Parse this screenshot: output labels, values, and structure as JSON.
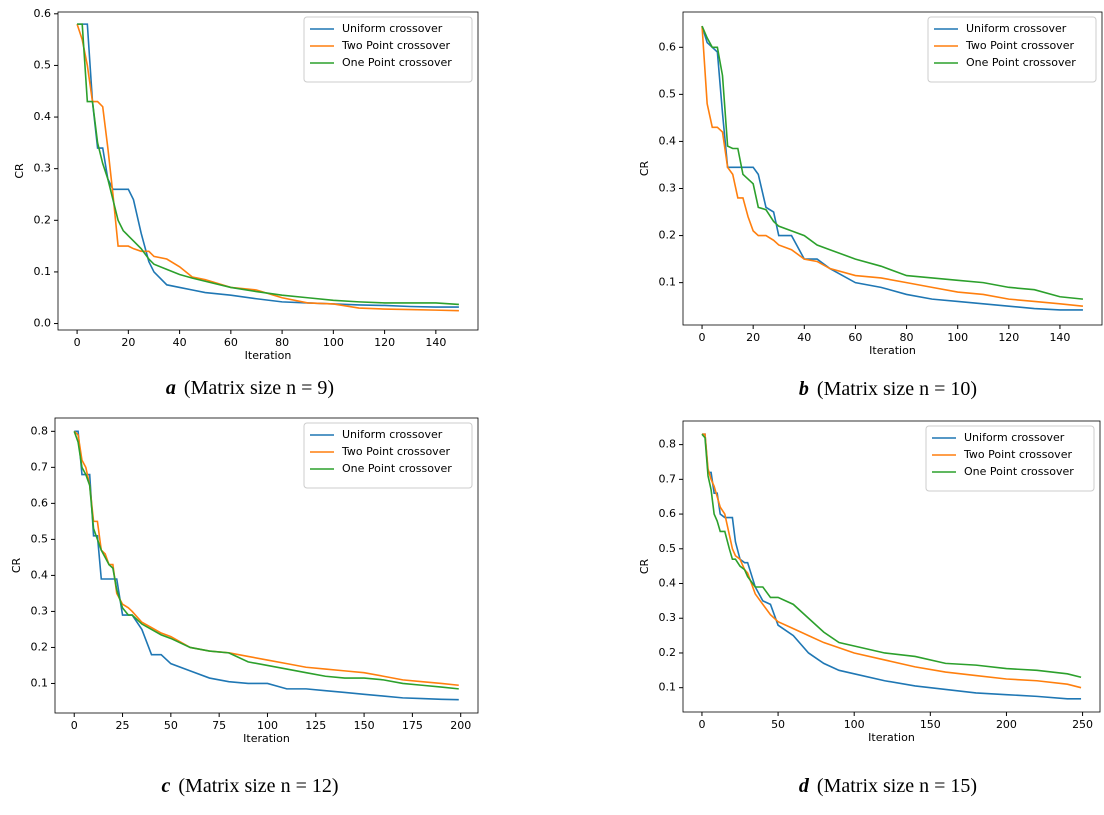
{
  "chart_data": [
    {
      "type": "line",
      "caption_label": "a",
      "caption": "(Matrix size n = 9)",
      "xlabel": "Iteration",
      "ylabel": "CR",
      "legend": "upper right",
      "xlim": [
        -7.45,
        156.45
      ],
      "xticks": [
        0,
        20,
        40,
        60,
        80,
        100,
        120,
        140
      ],
      "ylim": [
        -0.0125,
        0.6035
      ],
      "yticks": [
        {
          "value": 0,
          "label": "0.0"
        },
        0.1,
        0.2,
        0.3,
        0.4,
        0.5,
        0.6
      ],
      "x": [
        0,
        2,
        4,
        6,
        8,
        10,
        12,
        14,
        16,
        18,
        20,
        22,
        25,
        28,
        30,
        35,
        40,
        45,
        50,
        60,
        70,
        80,
        90,
        100,
        110,
        120,
        130,
        140,
        149
      ],
      "series": [
        {
          "name": "Uniform crossover",
          "color": "#1f77b4",
          "values": [
            0.58,
            0.58,
            0.58,
            0.43,
            0.34,
            0.34,
            0.28,
            0.26,
            0.26,
            0.26,
            0.26,
            0.24,
            0.175,
            0.12,
            0.1,
            0.075,
            0.07,
            0.065,
            0.06,
            0.055,
            0.048,
            0.042,
            0.04,
            0.038,
            0.036,
            0.035,
            0.033,
            0.032,
            0.032
          ]
        },
        {
          "name": "Two Point crossover",
          "color": "#ff7f0e",
          "values": [
            0.58,
            0.55,
            0.5,
            0.43,
            0.43,
            0.42,
            0.34,
            0.25,
            0.15,
            0.15,
            0.15,
            0.145,
            0.14,
            0.14,
            0.13,
            0.125,
            0.11,
            0.09,
            0.085,
            0.07,
            0.065,
            0.05,
            0.04,
            0.038,
            0.03,
            0.028,
            0.027,
            0.026,
            0.025
          ]
        },
        {
          "name": "One Point crossover",
          "color": "#2ca02c",
          "values": [
            0.58,
            0.58,
            0.43,
            0.43,
            0.35,
            0.31,
            0.28,
            0.24,
            0.2,
            0.18,
            0.17,
            0.16,
            0.145,
            0.125,
            0.115,
            0.105,
            0.095,
            0.088,
            0.082,
            0.07,
            0.062,
            0.055,
            0.05,
            0.045,
            0.042,
            0.04,
            0.04,
            0.04,
            0.037
          ]
        }
      ]
    },
    {
      "type": "line",
      "caption_label": "b",
      "caption": "(Matrix size n = 10)",
      "xlabel": "Iteration",
      "ylabel": "CR",
      "legend": "upper right",
      "xlim": [
        -7.45,
        156.45
      ],
      "xticks": [
        0,
        20,
        40,
        60,
        80,
        100,
        120,
        140
      ],
      "ylim": [
        0.01,
        0.675
      ],
      "yticks": [
        0.1,
        0.2,
        0.3,
        0.4,
        0.5,
        0.6
      ],
      "x": [
        0,
        2,
        4,
        6,
        8,
        10,
        12,
        14,
        16,
        18,
        20,
        22,
        25,
        28,
        30,
        35,
        40,
        45,
        50,
        60,
        70,
        80,
        90,
        100,
        110,
        120,
        130,
        140,
        149
      ],
      "series": [
        {
          "name": "Uniform crossover",
          "color": "#1f77b4",
          "values": [
            0.645,
            0.61,
            0.6,
            0.59,
            0.46,
            0.345,
            0.345,
            0.345,
            0.345,
            0.345,
            0.345,
            0.33,
            0.26,
            0.25,
            0.2,
            0.2,
            0.15,
            0.15,
            0.13,
            0.1,
            0.09,
            0.075,
            0.065,
            0.06,
            0.055,
            0.05,
            0.045,
            0.042,
            0.042
          ]
        },
        {
          "name": "Two Point crossover",
          "color": "#ff7f0e",
          "values": [
            0.645,
            0.48,
            0.43,
            0.43,
            0.42,
            0.345,
            0.33,
            0.28,
            0.28,
            0.24,
            0.21,
            0.2,
            0.2,
            0.19,
            0.18,
            0.17,
            0.15,
            0.145,
            0.13,
            0.115,
            0.11,
            0.1,
            0.09,
            0.08,
            0.075,
            0.065,
            0.06,
            0.055,
            0.05
          ]
        },
        {
          "name": "One Point crossover",
          "color": "#2ca02c",
          "values": [
            0.645,
            0.62,
            0.6,
            0.6,
            0.54,
            0.39,
            0.385,
            0.385,
            0.33,
            0.32,
            0.31,
            0.26,
            0.255,
            0.23,
            0.22,
            0.21,
            0.2,
            0.18,
            0.17,
            0.15,
            0.135,
            0.115,
            0.11,
            0.105,
            0.1,
            0.09,
            0.085,
            0.07,
            0.065
          ]
        }
      ]
    },
    {
      "type": "line",
      "caption_label": "c",
      "caption": "(Matrix size n = 12)",
      "xlabel": "Iteration",
      "ylabel": "CR",
      "legend": "upper right",
      "xlim": [
        -9.95,
        208.95
      ],
      "xticks": [
        0,
        25,
        50,
        75,
        100,
        125,
        150,
        175,
        200
      ],
      "ylim": [
        0.018,
        0.837
      ],
      "yticks": [
        0.1,
        0.2,
        0.3,
        0.4,
        0.5,
        0.6,
        0.7,
        0.8
      ],
      "x": [
        0,
        2,
        4,
        6,
        8,
        10,
        12,
        14,
        16,
        18,
        20,
        22,
        25,
        28,
        30,
        35,
        40,
        45,
        50,
        60,
        70,
        80,
        90,
        100,
        110,
        120,
        130,
        140,
        150,
        160,
        170,
        180,
        190,
        199
      ],
      "series": [
        {
          "name": "Uniform crossover",
          "color": "#1f77b4",
          "values": [
            0.8,
            0.8,
            0.68,
            0.68,
            0.68,
            0.51,
            0.51,
            0.39,
            0.39,
            0.39,
            0.39,
            0.39,
            0.29,
            0.29,
            0.29,
            0.25,
            0.18,
            0.18,
            0.155,
            0.135,
            0.115,
            0.105,
            0.1,
            0.1,
            0.085,
            0.085,
            0.08,
            0.075,
            0.07,
            0.065,
            0.06,
            0.058,
            0.056,
            0.055
          ]
        },
        {
          "name": "Two Point crossover",
          "color": "#ff7f0e",
          "values": [
            0.8,
            0.79,
            0.72,
            0.7,
            0.65,
            0.55,
            0.55,
            0.47,
            0.46,
            0.43,
            0.43,
            0.35,
            0.32,
            0.31,
            0.3,
            0.27,
            0.255,
            0.24,
            0.23,
            0.2,
            0.19,
            0.185,
            0.175,
            0.165,
            0.155,
            0.145,
            0.14,
            0.135,
            0.13,
            0.12,
            0.11,
            0.105,
            0.1,
            0.095
          ]
        },
        {
          "name": "One Point crossover",
          "color": "#2ca02c",
          "values": [
            0.8,
            0.77,
            0.7,
            0.68,
            0.65,
            0.53,
            0.5,
            0.47,
            0.45,
            0.43,
            0.42,
            0.36,
            0.31,
            0.29,
            0.29,
            0.265,
            0.25,
            0.235,
            0.225,
            0.2,
            0.19,
            0.185,
            0.16,
            0.15,
            0.14,
            0.13,
            0.12,
            0.115,
            0.115,
            0.11,
            0.1,
            0.095,
            0.09,
            0.085
          ]
        }
      ]
    },
    {
      "type": "line",
      "caption_label": "d",
      "caption": "(Matrix size n = 15)",
      "xlabel": "Iteration",
      "ylabel": "CR",
      "legend": "upper right",
      "xlim": [
        -12.45,
        261.45
      ],
      "xticks": [
        0,
        50,
        100,
        150,
        200,
        250
      ],
      "ylim": [
        0.03,
        0.868
      ],
      "yticks": [
        0.1,
        0.2,
        0.3,
        0.4,
        0.5,
        0.6,
        0.7,
        0.8
      ],
      "x": [
        0,
        2,
        4,
        6,
        8,
        10,
        12,
        15,
        18,
        20,
        22,
        25,
        28,
        30,
        35,
        40,
        45,
        50,
        60,
        70,
        80,
        90,
        100,
        120,
        140,
        160,
        180,
        200,
        220,
        240,
        249
      ],
      "series": [
        {
          "name": "Uniform crossover",
          "color": "#1f77b4",
          "values": [
            0.83,
            0.83,
            0.72,
            0.72,
            0.66,
            0.66,
            0.6,
            0.59,
            0.59,
            0.59,
            0.52,
            0.47,
            0.46,
            0.46,
            0.39,
            0.35,
            0.34,
            0.28,
            0.25,
            0.2,
            0.17,
            0.15,
            0.14,
            0.12,
            0.105,
            0.095,
            0.085,
            0.08,
            0.075,
            0.068,
            0.068
          ]
        },
        {
          "name": "Two Point crossover",
          "color": "#ff7f0e",
          "values": [
            0.83,
            0.83,
            0.73,
            0.7,
            0.68,
            0.65,
            0.62,
            0.6,
            0.54,
            0.5,
            0.48,
            0.47,
            0.44,
            0.43,
            0.37,
            0.34,
            0.31,
            0.29,
            0.27,
            0.25,
            0.23,
            0.215,
            0.2,
            0.18,
            0.16,
            0.145,
            0.135,
            0.125,
            0.12,
            0.11,
            0.1
          ]
        },
        {
          "name": "One Point crossover",
          "color": "#2ca02c",
          "values": [
            0.83,
            0.82,
            0.71,
            0.67,
            0.6,
            0.58,
            0.55,
            0.55,
            0.5,
            0.47,
            0.47,
            0.45,
            0.44,
            0.42,
            0.39,
            0.39,
            0.36,
            0.36,
            0.34,
            0.3,
            0.26,
            0.23,
            0.22,
            0.2,
            0.19,
            0.17,
            0.165,
            0.155,
            0.15,
            0.14,
            0.13
          ]
        }
      ]
    }
  ]
}
